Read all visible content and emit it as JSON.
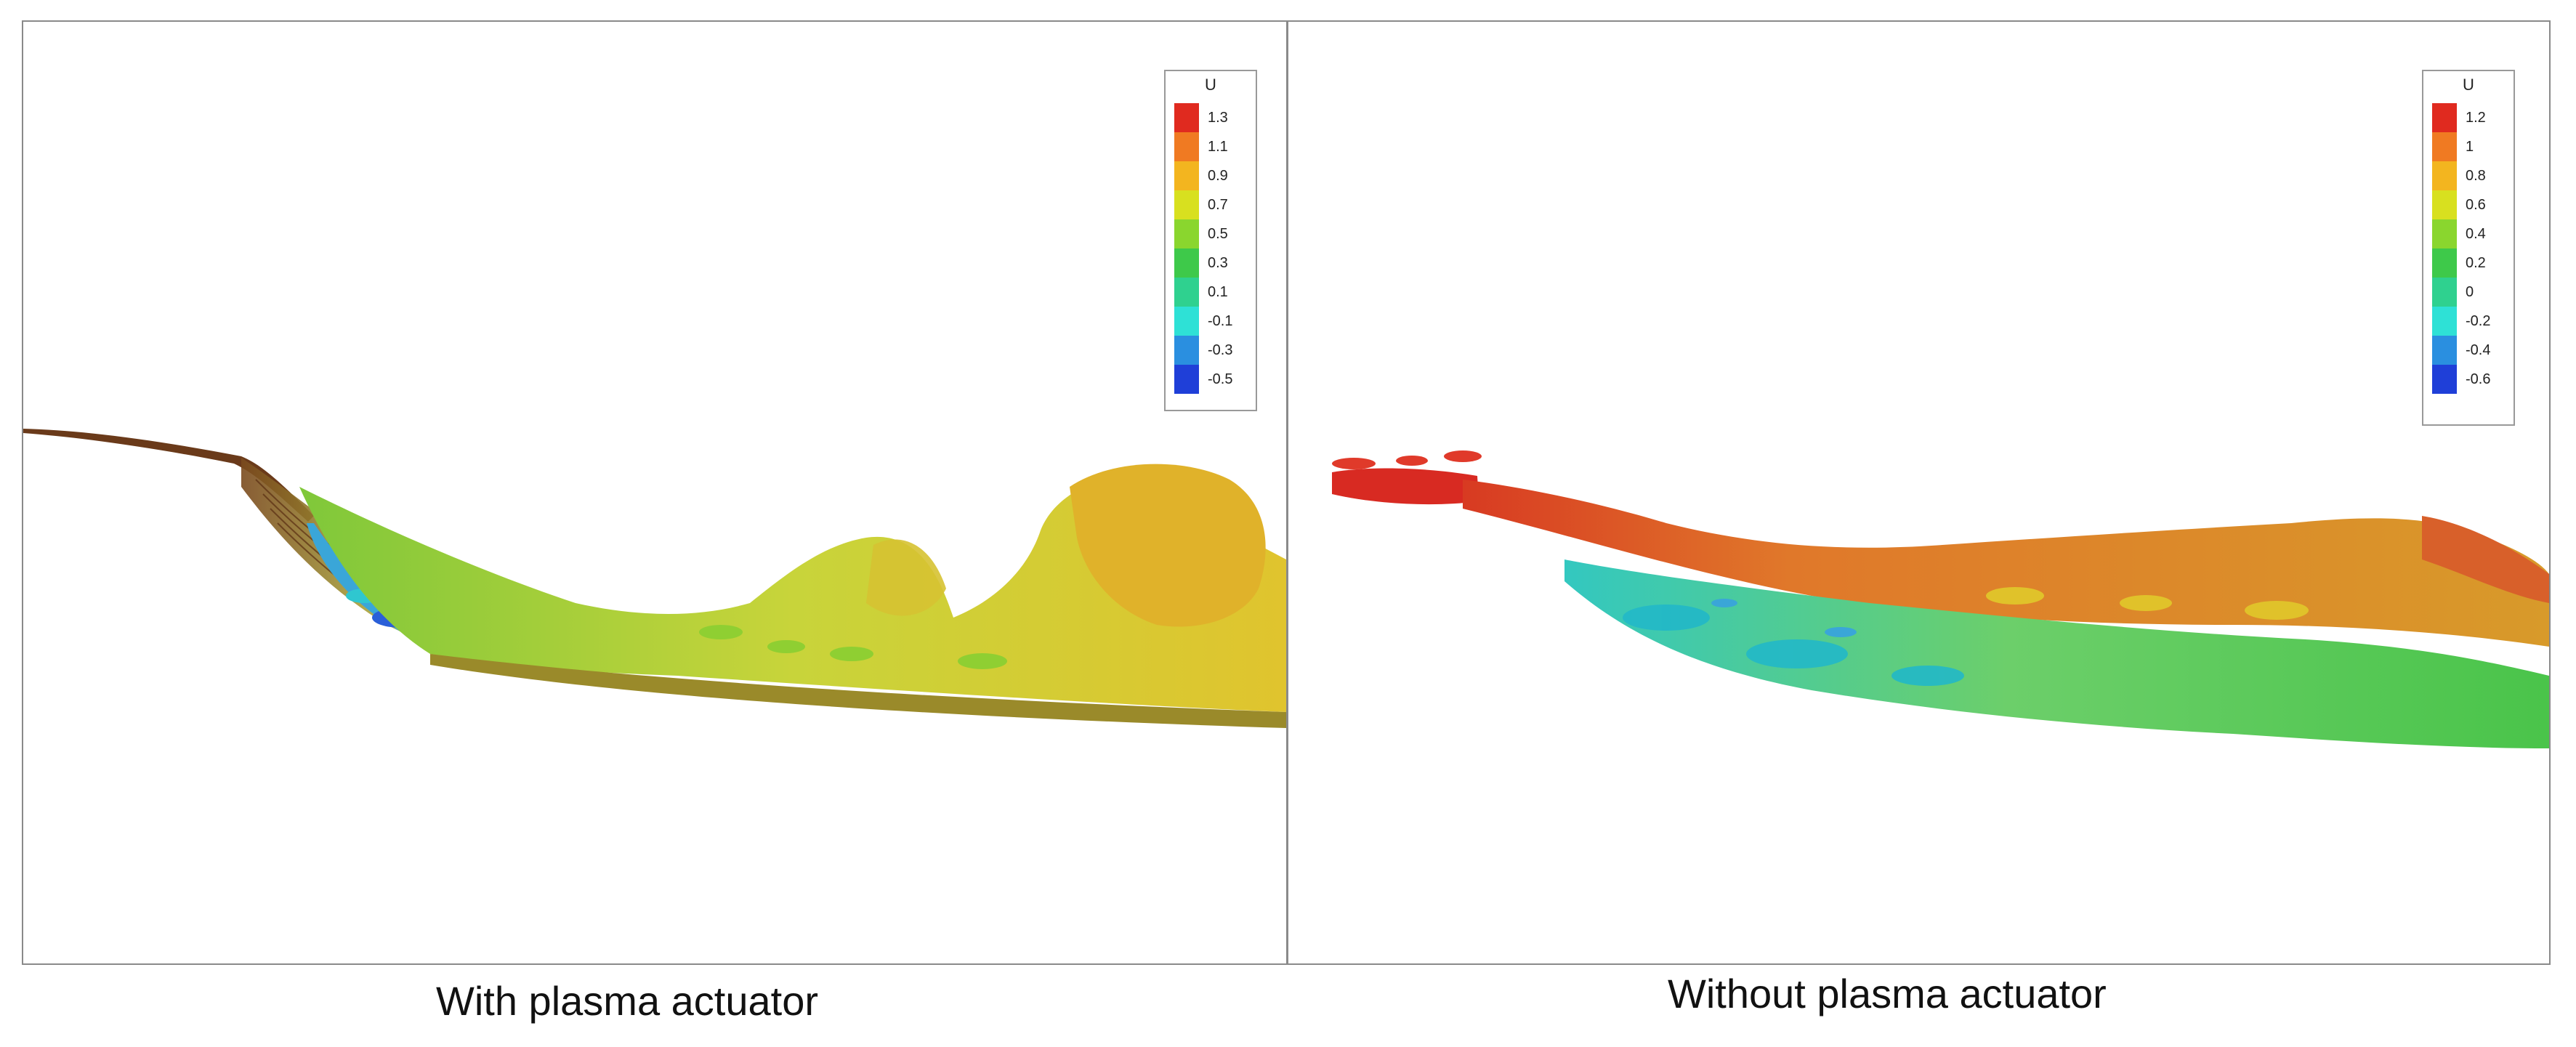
{
  "left_panel": {
    "caption": "With plasma actuator",
    "legend": {
      "title": "U",
      "ticks": [
        "1.3",
        "1.1",
        "0.9",
        "0.7",
        "0.5",
        "0.3",
        "0.1",
        "-0.1",
        "-0.3",
        "-0.5"
      ],
      "colors": [
        "#e02a1f",
        "#f07a22",
        "#f3b51f",
        "#d8e01f",
        "#8ad62e",
        "#3ec94a",
        "#2fd18f",
        "#2ee1d6",
        "#2a8fe0",
        "#1f3fd8"
      ]
    }
  },
  "right_panel": {
    "caption": "Without plasma actuator",
    "legend": {
      "title": "U",
      "ticks": [
        "1.2",
        "1",
        "0.8",
        "0.6",
        "0.4",
        "0.2",
        "0",
        "-0.2",
        "-0.4",
        "-0.6"
      ],
      "colors": [
        "#e02a1f",
        "#f07a22",
        "#f3b51f",
        "#d8e01f",
        "#8ad62e",
        "#3ec94a",
        "#2fd18f",
        "#2ee1d6",
        "#2a8fe0",
        "#1f3fd8"
      ]
    }
  }
}
